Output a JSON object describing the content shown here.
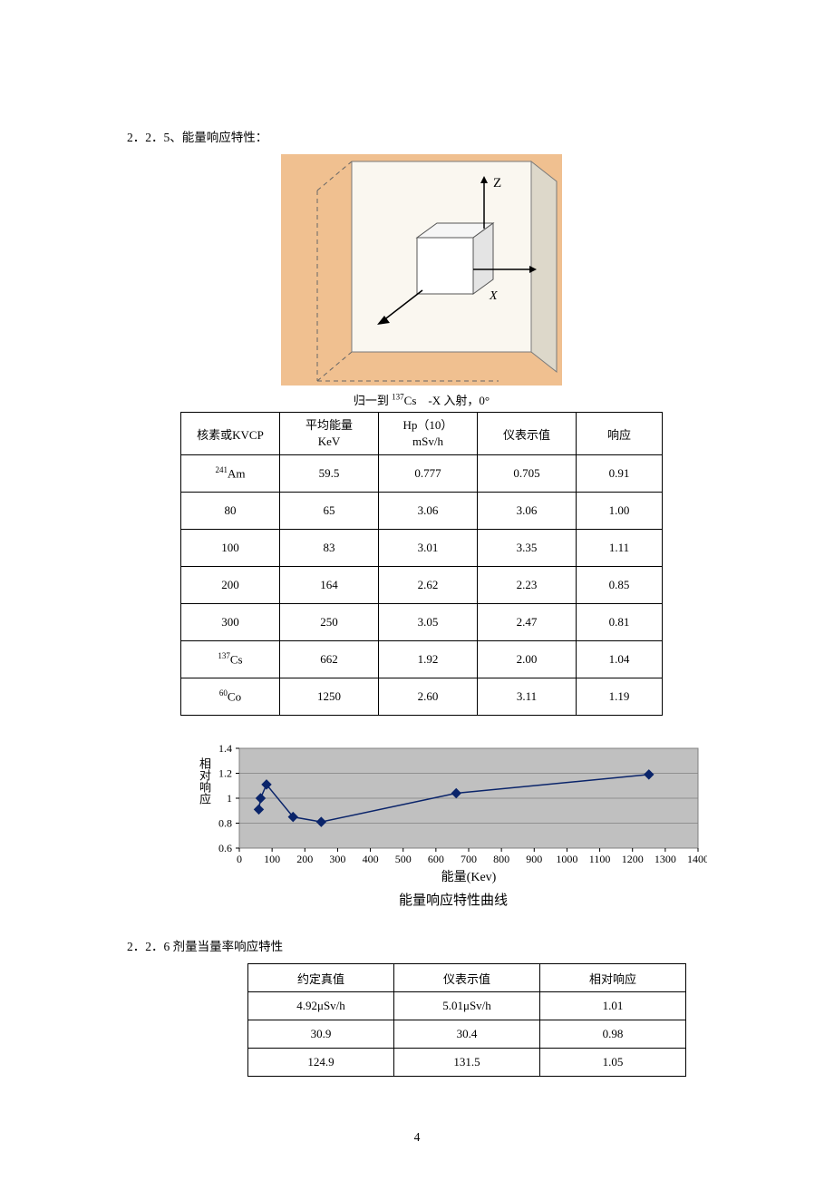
{
  "section1": {
    "heading": "2．2．5、能量响应特性："
  },
  "diagram": {
    "bg_color": "#f0c090",
    "outer_fill": "#faf7f0",
    "outer_stroke": "#7a7a7a",
    "inner_fill": "#ffffff",
    "inner_stroke": "#555555",
    "dash_color": "#666666",
    "axis_label_z": "Z",
    "axis_label_x": "X"
  },
  "table1": {
    "caption_prefix": "归一到 ",
    "caption_iso_sup": "137",
    "caption_iso": "Cs",
    "caption_suffix": "　-X 入射，0°",
    "headers": {
      "col0": "核素或KVCP",
      "col1_line1": "平均能量",
      "col1_line2": "KeV",
      "col2_line1": "Hp（10）",
      "col2_line2": "mSv/h",
      "col3": "仪表示值",
      "col4": "响应"
    },
    "rows": [
      {
        "c0_sup": "241",
        "c0": "Am",
        "c1": "59.5",
        "c2": "0.777",
        "c3": "0.705",
        "c4": "0.91"
      },
      {
        "c0_sup": "",
        "c0": "80",
        "c1": "65",
        "c2": "3.06",
        "c3": "3.06",
        "c4": "1.00"
      },
      {
        "c0_sup": "",
        "c0": "100",
        "c1": "83",
        "c2": "3.01",
        "c3": "3.35",
        "c4": "1.11"
      },
      {
        "c0_sup": "",
        "c0": "200",
        "c1": "164",
        "c2": "2.62",
        "c3": "2.23",
        "c4": "0.85"
      },
      {
        "c0_sup": "",
        "c0": "300",
        "c1": "250",
        "c2": "3.05",
        "c3": "2.47",
        "c4": "0.81"
      },
      {
        "c0_sup": "137",
        "c0": "Cs",
        "c1": "662",
        "c2": "1.92",
        "c3": "2.00",
        "c4": "1.04"
      },
      {
        "c0_sup": "60",
        "c0": "Co",
        "c1": "1250",
        "c2": "2.60",
        "c3": "3.11",
        "c4": "1.19"
      }
    ]
  },
  "chart": {
    "type": "line-scatter",
    "x_values": [
      59.5,
      65,
      83,
      164,
      250,
      662,
      1250
    ],
    "y_values": [
      0.91,
      1.0,
      1.11,
      0.85,
      0.81,
      1.04,
      1.19
    ],
    "xlim": [
      0,
      1400
    ],
    "ylim": [
      0.6,
      1.4
    ],
    "xtick_step": 100,
    "ytick_step": 0.2,
    "plot_bg": "#c0c0c0",
    "grid_color": "#808080",
    "outer_bg": "#ffffff",
    "line_color": "#0a246a",
    "marker_color": "#0a246a",
    "marker_size": 5,
    "axis_color": "#000000",
    "tick_font_size": 12,
    "ylabel": "相对响应",
    "xlabel": "能量(Kev)",
    "caption": "能量响应特性曲线"
  },
  "section2": {
    "heading": "2．2．6 剂量当量率响应特性"
  },
  "table2": {
    "headers": {
      "c0": "约定真值",
      "c1": "仪表示值",
      "c2": "相对响应"
    },
    "rows": [
      {
        "c0": "4.92μSv/h",
        "c1": "5.01μSv/h",
        "c2": "1.01"
      },
      {
        "c0": "30.9",
        "c1": "30.4",
        "c2": "0.98"
      },
      {
        "c0": "124.9",
        "c1": "131.5",
        "c2": "1.05"
      }
    ]
  },
  "page_number": "4"
}
